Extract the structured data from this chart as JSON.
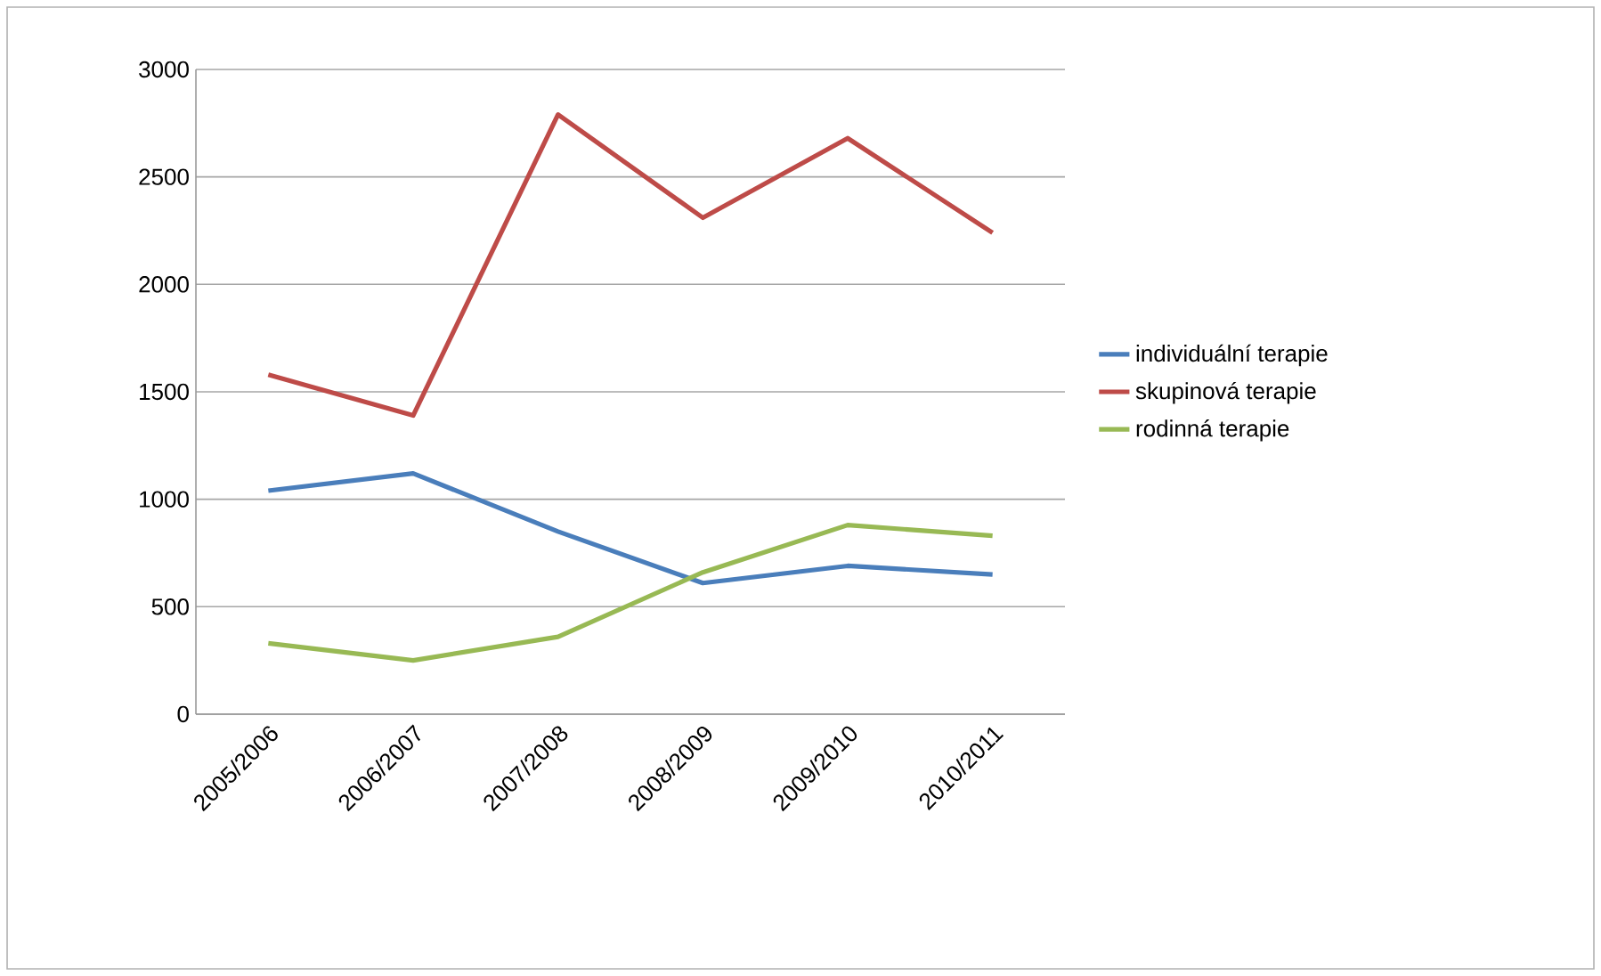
{
  "chart_data": {
    "type": "line",
    "categories": [
      "2005/2006",
      "2006/2007",
      "2007/2008",
      "2008/2009",
      "2009/2010",
      "2010/2011"
    ],
    "series": [
      {
        "name": "individuální terapie",
        "color": "#4a7ebb",
        "values": [
          1040,
          1120,
          850,
          610,
          690,
          650
        ]
      },
      {
        "name": "skupinová terapie",
        "color": "#be4b48",
        "values": [
          1580,
          1390,
          2790,
          2310,
          2680,
          2240
        ]
      },
      {
        "name": "rodinná terapie",
        "color": "#98b954",
        "values": [
          330,
          250,
          360,
          660,
          880,
          830
        ]
      }
    ],
    "ylim": [
      0,
      3000
    ],
    "yticks": [
      0,
      500,
      1000,
      1500,
      2000,
      2500,
      3000
    ],
    "grid": "y",
    "legend": "right",
    "marker": "none",
    "line_style": "solid"
  }
}
